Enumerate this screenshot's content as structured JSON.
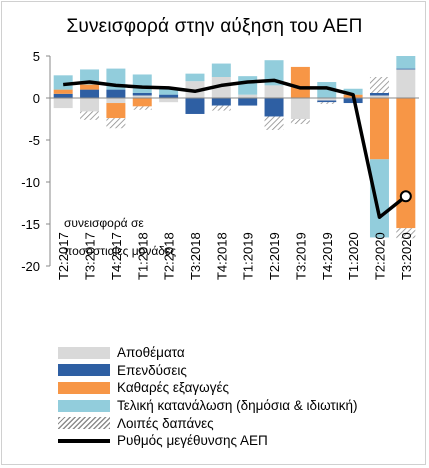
{
  "chart_data": {
    "type": "bar",
    "title": "Συνεισφορά στην αύξηση του ΑΕΠ",
    "ylabel": "συνεισφορά σε ποσοστιαίες μονάδες",
    "ylim": [
      -20,
      5
    ],
    "yticks": [
      5,
      0,
      -5,
      -10,
      -15,
      -20
    ],
    "categories": [
      "Τ2:2017",
      "Τ3:2017",
      "Τ4:2017",
      "Τ1:2018",
      "Τ2:2018",
      "Τ3:2018",
      "Τ4:2018",
      "Τ1:2019",
      "Τ2:2019",
      "Τ3:2019",
      "Τ4:2019",
      "Τ1:2020",
      "Τ2:2020",
      "Τ3:2020"
    ],
    "stacked": true,
    "series": [
      {
        "name": "Αποθέματα",
        "color": "#d9d9d9",
        "values": [
          -1.2,
          -1.6,
          -0.6,
          0.3,
          -0.5,
          2.0,
          2.5,
          0.4,
          1.5,
          -2.5,
          -0.3,
          0.0,
          0.3,
          3.4
        ]
      },
      {
        "name": "Επενδύσεις",
        "color": "#2e5fa3",
        "values": [
          0.5,
          1.0,
          1.0,
          0.3,
          0.4,
          -1.9,
          -0.9,
          -0.9,
          -2.2,
          0.0,
          -0.2,
          -0.6,
          0.3,
          0.1
        ]
      },
      {
        "name": "Καθαρές εξαγωγές",
        "color": "#f79646",
        "values": [
          0.5,
          0.6,
          -1.8,
          -1.0,
          0.0,
          0.0,
          0.0,
          0.0,
          0.0,
          3.7,
          0.0,
          0.4,
          -7.3,
          -15.5
        ]
      },
      {
        "name": "Τελική κατανάλωση (δημόσια & ιδιωτική)",
        "color": "#92cddc",
        "values": [
          1.7,
          1.8,
          2.5,
          2.2,
          0.8,
          0.9,
          1.6,
          2.2,
          3.0,
          0.0,
          1.9,
          0.7,
          -9.3,
          1.5
        ]
      },
      {
        "name": "Λοιπές δαπάνες",
        "color": "hatch",
        "values": [
          0.0,
          -1.0,
          -1.2,
          -0.4,
          0.0,
          0.0,
          -0.6,
          0.0,
          -1.6,
          -0.6,
          -0.2,
          0.0,
          1.9,
          -1.2
        ]
      }
    ],
    "line": {
      "name": "Ρυθμός μεγέθυνσης ΑΕΠ",
      "color": "#000000",
      "values": [
        1.6,
        1.9,
        1.5,
        1.3,
        1.2,
        0.8,
        1.5,
        1.9,
        2.1,
        1.2,
        1.2,
        0.4,
        -14.2,
        -11.7
      ]
    },
    "legend_position": "bottom"
  }
}
